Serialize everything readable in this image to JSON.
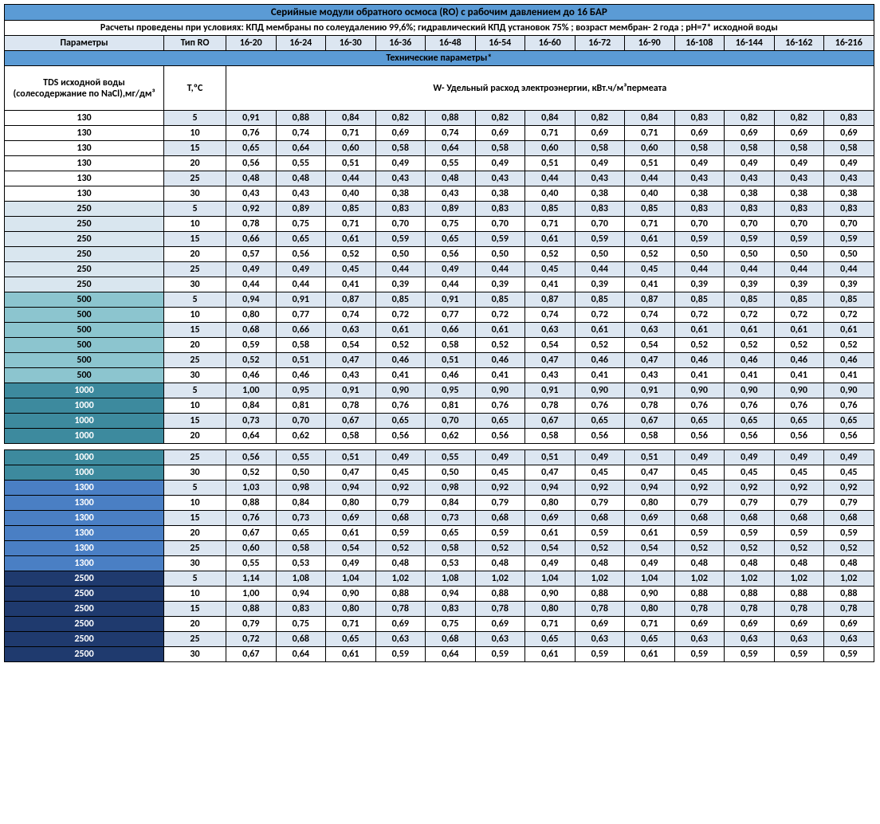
{
  "title": "Серийные модули обратного осмоса (RO) с рабочим давлением до 16 БАР",
  "subtitle": "Расчеты проведены при условиях: КПД мембраны по солеудалению 99,6%; гидравлический КПД установок 75% ; возраст мембран- 2 года ; рН=7* исходной воды",
  "sectionTitle": "Технические параметры*",
  "headers": {
    "p": "Параметры",
    "t": "Тип RO",
    "cols": [
      "16-20",
      "16-24",
      "16-30",
      "16-36",
      "16-48",
      "16-54",
      "16-60",
      "16-72",
      "16-90",
      "16-108",
      "16-144",
      "16-162",
      "16-216"
    ]
  },
  "sub": {
    "left": "TDS исходной воды (солесодержание по NaCl),мг/дм³",
    "t": "Т,ºС",
    "right": "W- Удельный расход электроэнергии, кВт.ч/м³пермеата"
  },
  "tdsColors": {
    "130": "#ffffff",
    "250": "#d9e6ef",
    "500": "#8cc5cf",
    "1000": "#3d8a9e",
    "1300": "#4a7fc4",
    "2500": "#1f3a6e"
  },
  "tdsTextColors": {
    "130": "#000",
    "250": "#000",
    "500": "#000",
    "1000": "#fff",
    "1300": "#fff",
    "2500": "#fff"
  },
  "rows": [
    {
      "tds": "130",
      "t": "5",
      "v": [
        "0,91",
        "0,88",
        "0,84",
        "0,82",
        "0,88",
        "0,82",
        "0,84",
        "0,82",
        "0,84",
        "0,83",
        "0,82",
        "0,82",
        "0,83"
      ]
    },
    {
      "tds": "130",
      "t": "10",
      "v": [
        "0,76",
        "0,74",
        "0,71",
        "0,69",
        "0,74",
        "0,69",
        "0,71",
        "0,69",
        "0,71",
        "0,69",
        "0,69",
        "0,69",
        "0,69"
      ]
    },
    {
      "tds": "130",
      "t": "15",
      "v": [
        "0,65",
        "0,64",
        "0,60",
        "0,58",
        "0,64",
        "0,58",
        "0,60",
        "0,58",
        "0,60",
        "0,58",
        "0,58",
        "0,58",
        "0,58"
      ]
    },
    {
      "tds": "130",
      "t": "20",
      "v": [
        "0,56",
        "0,55",
        "0,51",
        "0,49",
        "0,55",
        "0,49",
        "0,51",
        "0,49",
        "0,51",
        "0,49",
        "0,49",
        "0,49",
        "0,49"
      ]
    },
    {
      "tds": "130",
      "t": "25",
      "v": [
        "0,48",
        "0,48",
        "0,44",
        "0,43",
        "0,48",
        "0,43",
        "0,44",
        "0,43",
        "0,44",
        "0,43",
        "0,43",
        "0,43",
        "0,43"
      ]
    },
    {
      "tds": "130",
      "t": "30",
      "v": [
        "0,43",
        "0,43",
        "0,40",
        "0,38",
        "0,43",
        "0,38",
        "0,40",
        "0,38",
        "0,40",
        "0,38",
        "0,38",
        "0,38",
        "0,38"
      ]
    },
    {
      "tds": "250",
      "t": "5",
      "v": [
        "0,92",
        "0,89",
        "0,85",
        "0,83",
        "0,89",
        "0,83",
        "0,85",
        "0,83",
        "0,85",
        "0,83",
        "0,83",
        "0,83",
        "0,83"
      ]
    },
    {
      "tds": "250",
      "t": "10",
      "v": [
        "0,78",
        "0,75",
        "0,71",
        "0,70",
        "0,75",
        "0,70",
        "0,71",
        "0,70",
        "0,71",
        "0,70",
        "0,70",
        "0,70",
        "0,70"
      ]
    },
    {
      "tds": "250",
      "t": "15",
      "v": [
        "0,66",
        "0,65",
        "0,61",
        "0,59",
        "0,65",
        "0,59",
        "0,61",
        "0,59",
        "0,61",
        "0,59",
        "0,59",
        "0,59",
        "0,59"
      ]
    },
    {
      "tds": "250",
      "t": "20",
      "v": [
        "0,57",
        "0,56",
        "0,52",
        "0,50",
        "0,56",
        "0,50",
        "0,52",
        "0,50",
        "0,52",
        "0,50",
        "0,50",
        "0,50",
        "0,50"
      ]
    },
    {
      "tds": "250",
      "t": "25",
      "v": [
        "0,49",
        "0,49",
        "0,45",
        "0,44",
        "0,49",
        "0,44",
        "0,45",
        "0,44",
        "0,45",
        "0,44",
        "0,44",
        "0,44",
        "0,44"
      ]
    },
    {
      "tds": "250",
      "t": "30",
      "v": [
        "0,44",
        "0,44",
        "0,41",
        "0,39",
        "0,44",
        "0,39",
        "0,41",
        "0,39",
        "0,41",
        "0,39",
        "0,39",
        "0,39",
        "0,39"
      ]
    },
    {
      "tds": "500",
      "t": "5",
      "v": [
        "0,94",
        "0,91",
        "0,87",
        "0,85",
        "0,91",
        "0,85",
        "0,87",
        "0,85",
        "0,87",
        "0,85",
        "0,85",
        "0,85",
        "0,85"
      ]
    },
    {
      "tds": "500",
      "t": "10",
      "v": [
        "0,80",
        "0,77",
        "0,74",
        "0,72",
        "0,77",
        "0,72",
        "0,74",
        "0,72",
        "0,74",
        "0,72",
        "0,72",
        "0,72",
        "0,72"
      ]
    },
    {
      "tds": "500",
      "t": "15",
      "v": [
        "0,68",
        "0,66",
        "0,63",
        "0,61",
        "0,66",
        "0,61",
        "0,63",
        "0,61",
        "0,63",
        "0,61",
        "0,61",
        "0,61",
        "0,61"
      ]
    },
    {
      "tds": "500",
      "t": "20",
      "v": [
        "0,59",
        "0,58",
        "0,54",
        "0,52",
        "0,58",
        "0,52",
        "0,54",
        "0,52",
        "0,54",
        "0,52",
        "0,52",
        "0,52",
        "0,52"
      ]
    },
    {
      "tds": "500",
      "t": "25",
      "v": [
        "0,52",
        "0,51",
        "0,47",
        "0,46",
        "0,51",
        "0,46",
        "0,47",
        "0,46",
        "0,47",
        "0,46",
        "0,46",
        "0,46",
        "0,46"
      ]
    },
    {
      "tds": "500",
      "t": "30",
      "v": [
        "0,46",
        "0,46",
        "0,43",
        "0,41",
        "0,46",
        "0,41",
        "0,43",
        "0,41",
        "0,43",
        "0,41",
        "0,41",
        "0,41",
        "0,41"
      ]
    },
    {
      "tds": "1000",
      "t": "5",
      "v": [
        "1,00",
        "0,95",
        "0,91",
        "0,90",
        "0,95",
        "0,90",
        "0,91",
        "0,90",
        "0,91",
        "0,90",
        "0,90",
        "0,90",
        "0,90"
      ]
    },
    {
      "tds": "1000",
      "t": "10",
      "v": [
        "0,84",
        "0,81",
        "0,78",
        "0,76",
        "0,81",
        "0,76",
        "0,78",
        "0,76",
        "0,78",
        "0,76",
        "0,76",
        "0,76",
        "0,76"
      ]
    },
    {
      "tds": "1000",
      "t": "15",
      "v": [
        "0,73",
        "0,70",
        "0,67",
        "0,65",
        "0,70",
        "0,65",
        "0,67",
        "0,65",
        "0,67",
        "0,65",
        "0,65",
        "0,65",
        "0,65"
      ]
    },
    {
      "tds": "1000",
      "t": "20",
      "v": [
        "0,64",
        "0,62",
        "0,58",
        "0,56",
        "0,62",
        "0,56",
        "0,58",
        "0,56",
        "0,58",
        "0,56",
        "0,56",
        "0,56",
        "0,56"
      ]
    },
    {
      "tds": "1000",
      "t": "25",
      "v": [
        "0,56",
        "0,55",
        "0,51",
        "0,49",
        "0,55",
        "0,49",
        "0,51",
        "0,49",
        "0,51",
        "0,49",
        "0,49",
        "0,49",
        "0,49"
      ],
      "afterGap": true
    },
    {
      "tds": "1000",
      "t": "30",
      "v": [
        "0,52",
        "0,50",
        "0,47",
        "0,45",
        "0,50",
        "0,45",
        "0,47",
        "0,45",
        "0,47",
        "0,45",
        "0,45",
        "0,45",
        "0,45"
      ]
    },
    {
      "tds": "1300",
      "t": "5",
      "v": [
        "1,03",
        "0,98",
        "0,94",
        "0,92",
        "0,98",
        "0,92",
        "0,94",
        "0,92",
        "0,94",
        "0,92",
        "0,92",
        "0,92",
        "0,92"
      ]
    },
    {
      "tds": "1300",
      "t": "10",
      "v": [
        "0,88",
        "0,84",
        "0,80",
        "0,79",
        "0,84",
        "0,79",
        "0,80",
        "0,79",
        "0,80",
        "0,79",
        "0,79",
        "0,79",
        "0,79"
      ]
    },
    {
      "tds": "1300",
      "t": "15",
      "v": [
        "0,76",
        "0,73",
        "0,69",
        "0,68",
        "0,73",
        "0,68",
        "0,69",
        "0,68",
        "0,69",
        "0,68",
        "0,68",
        "0,68",
        "0,68"
      ]
    },
    {
      "tds": "1300",
      "t": "20",
      "v": [
        "0,67",
        "0,65",
        "0,61",
        "0,59",
        "0,65",
        "0,59",
        "0,61",
        "0,59",
        "0,61",
        "0,59",
        "0,59",
        "0,59",
        "0,59"
      ]
    },
    {
      "tds": "1300",
      "t": "25",
      "v": [
        "0,60",
        "0,58",
        "0,54",
        "0,52",
        "0,58",
        "0,52",
        "0,54",
        "0,52",
        "0,54",
        "0,52",
        "0,52",
        "0,52",
        "0,52"
      ]
    },
    {
      "tds": "1300",
      "t": "30",
      "v": [
        "0,55",
        "0,53",
        "0,49",
        "0,48",
        "0,53",
        "0,48",
        "0,49",
        "0,48",
        "0,49",
        "0,48",
        "0,48",
        "0,48",
        "0,48"
      ]
    },
    {
      "tds": "2500",
      "t": "5",
      "v": [
        "1,14",
        "1,08",
        "1,04",
        "1,02",
        "1,08",
        "1,02",
        "1,04",
        "1,02",
        "1,04",
        "1,02",
        "1,02",
        "1,02",
        "1,02"
      ]
    },
    {
      "tds": "2500",
      "t": "10",
      "v": [
        "1,00",
        "0,94",
        "0,90",
        "0,88",
        "0,94",
        "0,88",
        "0,90",
        "0,88",
        "0,90",
        "0,88",
        "0,88",
        "0,88",
        "0,88"
      ]
    },
    {
      "tds": "2500",
      "t": "15",
      "v": [
        "0,88",
        "0,83",
        "0,80",
        "0,78",
        "0,83",
        "0,78",
        "0,80",
        "0,78",
        "0,80",
        "0,78",
        "0,78",
        "0,78",
        "0,78"
      ]
    },
    {
      "tds": "2500",
      "t": "20",
      "v": [
        "0,79",
        "0,75",
        "0,71",
        "0,69",
        "0,75",
        "0,69",
        "0,71",
        "0,69",
        "0,71",
        "0,69",
        "0,69",
        "0,69",
        "0,69"
      ]
    },
    {
      "tds": "2500",
      "t": "25",
      "v": [
        "0,72",
        "0,68",
        "0,65",
        "0,63",
        "0,68",
        "0,63",
        "0,65",
        "0,63",
        "0,65",
        "0,63",
        "0,63",
        "0,63",
        "0,63"
      ]
    },
    {
      "tds": "2500",
      "t": "30",
      "v": [
        "0,67",
        "0,64",
        "0,61",
        "0,59",
        "0,64",
        "0,59",
        "0,61",
        "0,59",
        "0,61",
        "0,59",
        "0,59",
        "0,59",
        "0,59"
      ]
    }
  ]
}
